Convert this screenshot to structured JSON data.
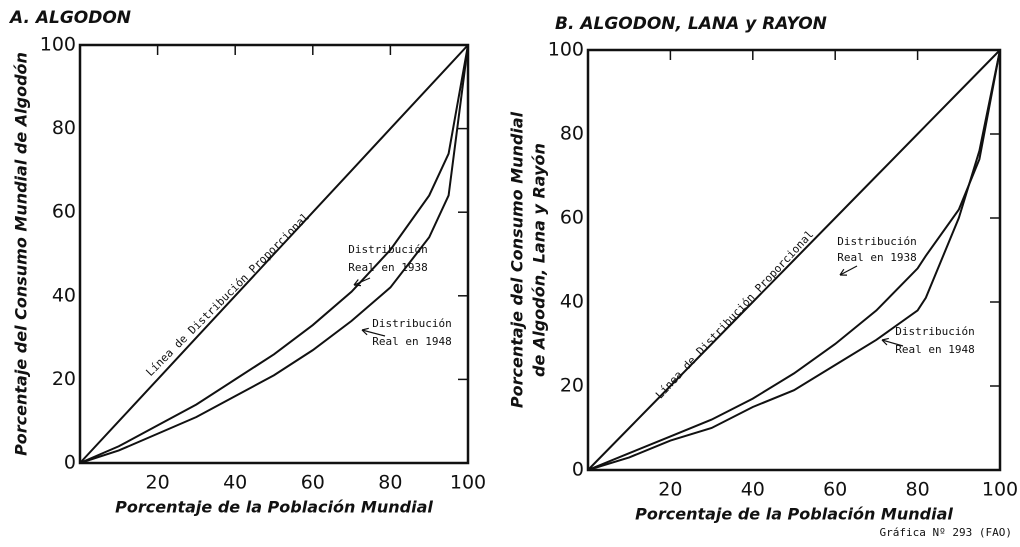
{
  "chart_data": [
    {
      "type": "line",
      "title": "A. ALGODON",
      "xlabel": "Porcentaje de la Población Mundial",
      "ylabel": [
        "Porcentaje del Consumo Mundial de Algodón"
      ],
      "x": [
        0,
        10,
        20,
        30,
        40,
        50,
        60,
        70,
        80,
        90,
        95,
        100
      ],
      "series": [
        {
          "name": "Línea de Distribución Proporcional",
          "color": "#111111",
          "values": [
            0,
            10,
            20,
            30,
            40,
            50,
            60,
            70,
            80,
            90,
            95,
            100
          ]
        },
        {
          "name": "Distribución Real en 1938",
          "color": "#111111",
          "values": [
            0,
            4,
            9,
            14,
            20,
            26,
            33,
            41,
            51,
            64,
            74,
            100
          ]
        },
        {
          "name": "Distribución Real en 1948",
          "color": "#111111",
          "values": [
            0,
            3,
            7,
            11,
            16,
            21,
            27,
            34,
            42,
            54,
            64,
            100
          ]
        }
      ],
      "annotations": [
        "Línea de Distribución Proporcional",
        "Distribución",
        "Real en 1938",
        "Distribución",
        "Real en 1948"
      ],
      "xlim": [
        0,
        100
      ],
      "ylim": [
        0,
        100
      ],
      "xticks": [
        20,
        40,
        60,
        80,
        100
      ],
      "yticks": [
        0,
        20,
        40,
        60,
        80,
        100
      ]
    },
    {
      "type": "line",
      "title": "B. ALGODON, LANA y RAYON",
      "xlabel": "Porcentaje de la Población Mundial",
      "ylabel": [
        "Porcentaje del Consumo Mundial",
        "de Algodón, Lana y Rayón"
      ],
      "x": [
        0,
        10,
        20,
        30,
        40,
        50,
        60,
        70,
        80,
        82,
        90,
        95,
        100
      ],
      "series": [
        {
          "name": "Línea de Distribución Proporcional",
          "color": "#111111",
          "values": [
            0,
            10,
            20,
            30,
            40,
            50,
            60,
            70,
            80,
            82,
            90,
            95,
            100
          ]
        },
        {
          "name": "Distribución Real en 1938",
          "color": "#111111",
          "values": [
            0,
            4,
            8,
            12,
            17,
            23,
            30,
            38,
            48,
            51,
            62,
            74,
            100
          ]
        },
        {
          "name": "Distribución Real en 1948",
          "color": "#111111",
          "values": [
            0,
            3,
            7,
            10,
            15,
            19,
            25,
            31,
            38,
            41,
            60,
            76,
            100
          ]
        }
      ],
      "annotations": [
        "Línea de Distribución Proporcional",
        "Distribución",
        "Real en 1938",
        "Distribución",
        "Real en 1948"
      ],
      "xlim": [
        0,
        100
      ],
      "ylim": [
        0,
        100
      ],
      "xticks": [
        20,
        40,
        60,
        80,
        100
      ],
      "yticks": [
        0,
        20,
        40,
        60,
        80,
        100
      ]
    }
  ],
  "footer": "Gráfica Nº 293 (FAO)"
}
